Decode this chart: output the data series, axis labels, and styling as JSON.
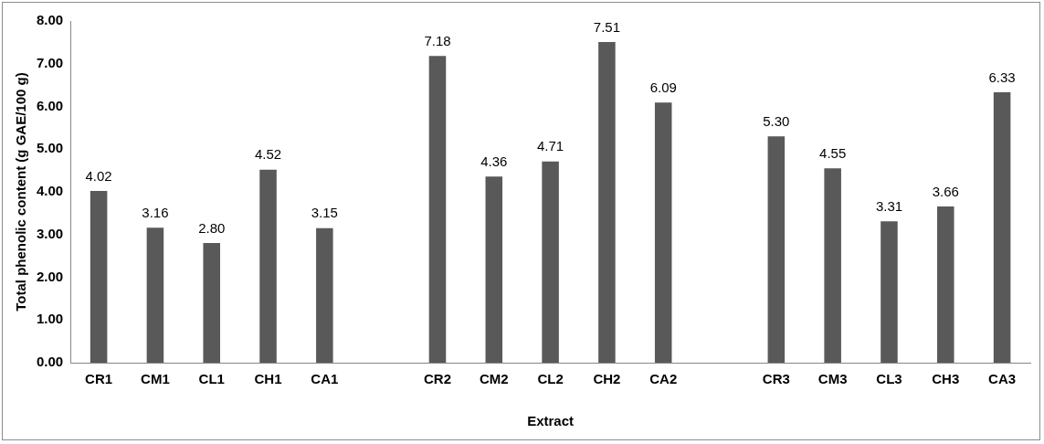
{
  "chart_data": {
    "type": "bar",
    "xlabel": "Extract",
    "ylabel": "Total phenolic content (g GAE/100 g)",
    "categories": [
      "CR1",
      "CM1",
      "CL1",
      "CH1",
      "CA1",
      null,
      "CR2",
      "CM2",
      "CL2",
      "CH2",
      "CA2",
      null,
      "CR3",
      "CM3",
      "CL3",
      "CH3",
      "CA3"
    ],
    "values": [
      4.02,
      3.16,
      2.8,
      4.52,
      3.15,
      null,
      7.18,
      4.36,
      4.71,
      7.51,
      6.09,
      null,
      5.3,
      4.55,
      3.31,
      3.66,
      6.33
    ],
    "value_labels": [
      "4.02",
      "3.16",
      "2.80",
      "4.52",
      "3.15",
      null,
      "7.18",
      "4.36",
      "4.71",
      "7.51",
      "6.09",
      null,
      "5.30",
      "4.55",
      "3.31",
      "3.66",
      "6.33"
    ],
    "color": "#595959",
    "ylim": [
      0,
      8
    ],
    "yticks": [
      {
        "value": 0,
        "label": "0.00"
      },
      {
        "value": 1,
        "label": "1.00"
      },
      {
        "value": 2,
        "label": "2.00"
      },
      {
        "value": 3,
        "label": "3.00"
      },
      {
        "value": 4,
        "label": "4.00"
      },
      {
        "value": 5,
        "label": "5.00"
      },
      {
        "value": 6,
        "label": "6.00"
      },
      {
        "value": 7,
        "label": "7.00"
      },
      {
        "value": 8,
        "label": "8.00"
      }
    ],
    "grid": false,
    "legend": false
  }
}
